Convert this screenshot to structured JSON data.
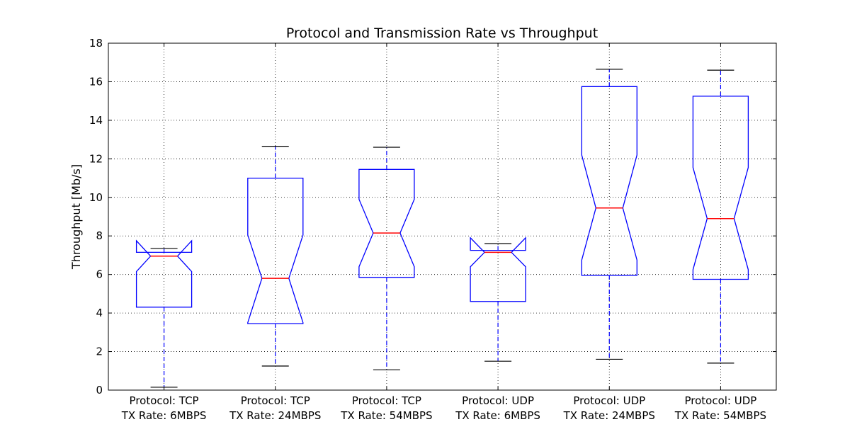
{
  "chart_data": {
    "type": "boxplot",
    "title": "Protocol and Transmission Rate vs Throughput",
    "xlabel": "",
    "ylabel": "Throughput [Mb/s]",
    "ylim": [
      0,
      18
    ],
    "yticks": [
      "0",
      "2",
      "4",
      "6",
      "8",
      "10",
      "12",
      "14",
      "16",
      "18"
    ],
    "grid": true,
    "notched": true,
    "categories": [
      [
        "Protocol: TCP",
        "TX Rate: 6MBPS"
      ],
      [
        "Protocol: TCP",
        "TX Rate: 24MBPS"
      ],
      [
        "Protocol: TCP",
        "TX Rate: 54MBPS"
      ],
      [
        "Protocol: UDP",
        "TX Rate: 6MBPS"
      ],
      [
        "Protocol: UDP",
        "TX Rate: 24MBPS"
      ],
      [
        "Protocol: UDP",
        "TX Rate: 54MBPS"
      ]
    ],
    "boxes": [
      {
        "whisker_low": 0.15,
        "q1": 4.3,
        "median": 6.95,
        "q3": 7.15,
        "whisker_high": 7.35,
        "notch_low": 6.15,
        "notch_high": 7.75
      },
      {
        "whisker_low": 1.25,
        "q1": 3.45,
        "median": 5.8,
        "q3": 11.0,
        "whisker_high": 12.65,
        "notch_low": 3.5,
        "notch_high": 8.05
      },
      {
        "whisker_low": 1.05,
        "q1": 5.85,
        "median": 8.15,
        "q3": 11.45,
        "whisker_high": 12.6,
        "notch_low": 6.4,
        "notch_high": 9.9
      },
      {
        "whisker_low": 1.5,
        "q1": 4.6,
        "median": 7.15,
        "q3": 7.25,
        "whisker_high": 7.6,
        "notch_low": 6.4,
        "notch_high": 7.9
      },
      {
        "whisker_low": 1.6,
        "q1": 5.95,
        "median": 9.45,
        "q3": 15.75,
        "whisker_high": 16.65,
        "notch_low": 6.75,
        "notch_high": 12.2
      },
      {
        "whisker_low": 1.4,
        "q1": 5.75,
        "median": 8.9,
        "q3": 15.25,
        "whisker_high": 16.6,
        "notch_low": 6.25,
        "notch_high": 11.55
      }
    ],
    "colors": {
      "box": "#0000ff",
      "median": "#ff0000",
      "cap": "#000000",
      "grid": "#000000"
    }
  }
}
